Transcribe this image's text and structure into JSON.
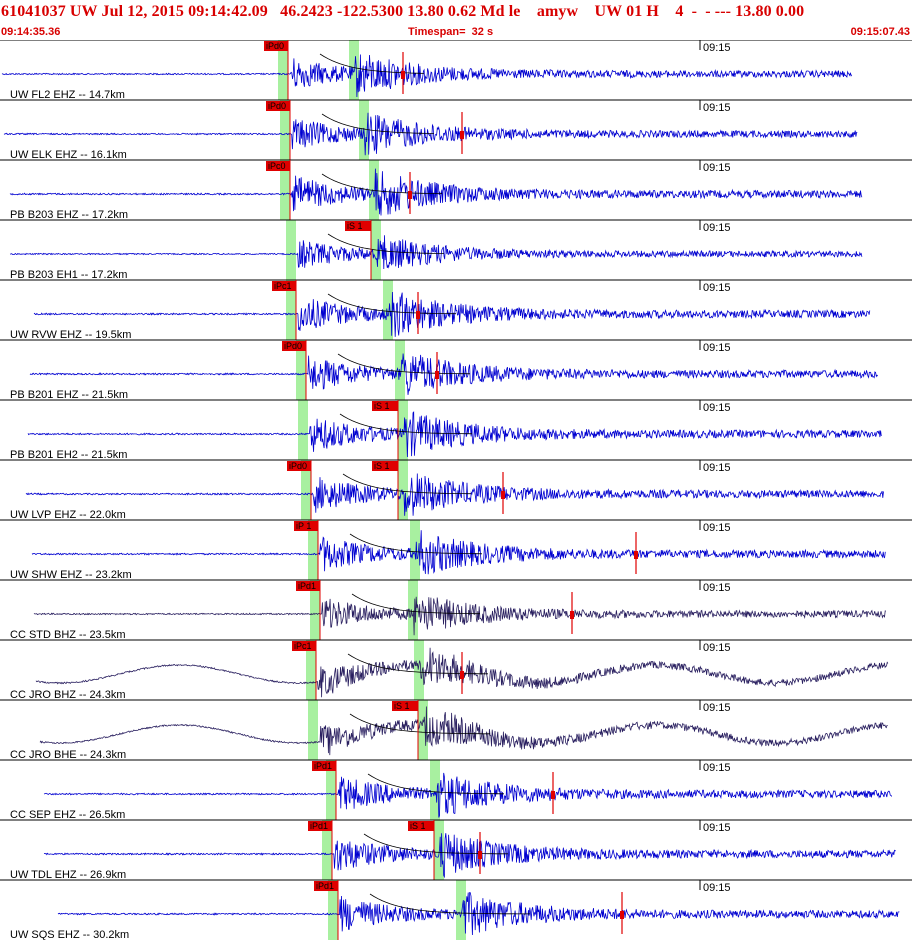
{
  "header": {
    "title": "61041037 UW Jul 12, 2015 09:14:42.09   46.2423 -122.5300 13.80 0.62 Md le    amyw    UW 01 H    4  -  - --- 13.80 0.00",
    "start_time": "09:14:35.36",
    "timespan": "Timespan=  32 s",
    "end_time": "09:15:07.43"
  },
  "colors": {
    "trace_blue": "#0000d0",
    "trace_dark": "#2a2060",
    "pick_red": "#e00000",
    "window_green": "#a8f0a0",
    "coda_black": "#000000"
  },
  "minute_label": "09:15",
  "channels": [
    {
      "label": "UW FL2 EHZ -- 14.7km",
      "pick1": "iPd0",
      "pick2": "",
      "color": "blue",
      "amp": 0.9,
      "wander": 0
    },
    {
      "label": "UW ELK EHZ -- 16.1km",
      "pick1": "iPd0",
      "pick2": "",
      "color": "blue",
      "amp": 0.9,
      "wander": 0
    },
    {
      "label": "PB B203 EHZ -- 17.2km",
      "pick1": "iPc0",
      "pick2": "",
      "color": "blue",
      "amp": 1.0,
      "wander": 0
    },
    {
      "label": "PB B203 EH1 -- 17.2km",
      "pick1": "",
      "pick2": "iS 1",
      "color": "blue",
      "amp": 0.8,
      "wander": 0
    },
    {
      "label": "UW RVW EHZ -- 19.5km",
      "pick1": "iPc1",
      "pick2": "",
      "color": "blue",
      "amp": 1.0,
      "wander": 0
    },
    {
      "label": "PB B201 EHZ -- 21.5km",
      "pick1": "iPd0",
      "pick2": "",
      "color": "blue",
      "amp": 1.0,
      "wander": 0
    },
    {
      "label": "PB B201 EH2 -- 21.5km",
      "pick1": "",
      "pick2": "iS 1",
      "color": "blue",
      "amp": 1.0,
      "wander": 0
    },
    {
      "label": "UW LVP EHZ -- 22.0km",
      "pick1": "iPd0",
      "pick2": "iS 1",
      "color": "blue",
      "amp": 1.0,
      "wander": 0
    },
    {
      "label": "UW SHW EHZ -- 23.2km",
      "pick1": "iP 1",
      "pick2": "",
      "color": "blue",
      "amp": 1.0,
      "wander": 0
    },
    {
      "label": "CC STD BHZ -- 23.5km",
      "pick1": "iPd1",
      "pick2": "",
      "color": "dark",
      "amp": 0.9,
      "wander": 0
    },
    {
      "label": "CC JRO BHZ -- 24.3km",
      "pick1": "iPc1",
      "pick2": "",
      "color": "dark",
      "amp": 0.9,
      "wander": 1
    },
    {
      "label": "CC JRO BHE -- 24.3km",
      "pick1": "",
      "pick2": "iS 1",
      "color": "dark",
      "amp": 0.9,
      "wander": 1
    },
    {
      "label": "CC SEP EHZ -- 26.5km",
      "pick1": "iPd1",
      "pick2": "",
      "color": "blue",
      "amp": 1.0,
      "wander": 0
    },
    {
      "label": "UW TDL EHZ -- 26.9km",
      "pick1": "iPd1",
      "pick2": "iS 1",
      "color": "blue",
      "amp": 1.0,
      "wander": 0
    },
    {
      "label": "UW SQS EHZ -- 30.2km",
      "pick1": "iPd1",
      "pick2": "",
      "color": "blue",
      "amp": 1.0,
      "wander": 0
    }
  ]
}
